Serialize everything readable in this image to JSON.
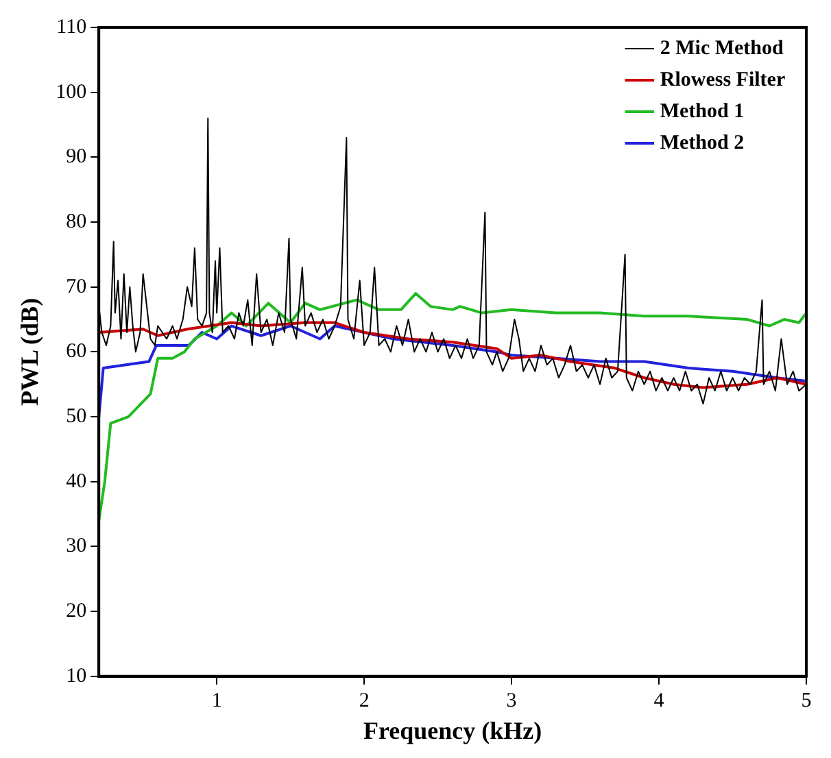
{
  "chart_data": {
    "type": "line",
    "xlabel": "Frequency (kHz)",
    "ylabel": "PWL (dB)",
    "xlim": [
      0.2,
      5
    ],
    "xticks": [
      1,
      2,
      3,
      4,
      5
    ],
    "ylim": [
      10,
      110
    ],
    "yticks": [
      10,
      20,
      30,
      40,
      50,
      60,
      70,
      80,
      90,
      100,
      110
    ],
    "legend": "top right",
    "grid": false,
    "marker": "none",
    "line_style": "solid",
    "series": [
      {
        "name": "2 Mic Method",
        "color": "#000000",
        "x": [
          0.2,
          0.22,
          0.25,
          0.28,
          0.3,
          0.31,
          0.33,
          0.35,
          0.37,
          0.39,
          0.41,
          0.43,
          0.45,
          0.48,
          0.5,
          0.52,
          0.55,
          0.58,
          0.6,
          0.63,
          0.66,
          0.7,
          0.73,
          0.77,
          0.8,
          0.83,
          0.85,
          0.87,
          0.9,
          0.93,
          0.94,
          0.95,
          0.97,
          0.99,
          1.0,
          1.02,
          1.04,
          1.08,
          1.12,
          1.15,
          1.18,
          1.21,
          1.24,
          1.27,
          1.3,
          1.34,
          1.38,
          1.42,
          1.46,
          1.49,
          1.5,
          1.54,
          1.58,
          1.6,
          1.64,
          1.68,
          1.72,
          1.76,
          1.8,
          1.84,
          1.88,
          1.89,
          1.93,
          1.97,
          2.0,
          2.04,
          2.07,
          2.1,
          2.14,
          2.18,
          2.22,
          2.26,
          2.3,
          2.34,
          2.38,
          2.42,
          2.46,
          2.5,
          2.54,
          2.58,
          2.62,
          2.66,
          2.7,
          2.74,
          2.78,
          2.82,
          2.83,
          2.87,
          2.9,
          2.94,
          2.98,
          3.02,
          3.05,
          3.08,
          3.12,
          3.16,
          3.2,
          3.24,
          3.28,
          3.32,
          3.36,
          3.4,
          3.44,
          3.48,
          3.52,
          3.56,
          3.6,
          3.64,
          3.68,
          3.72,
          3.77,
          3.78,
          3.82,
          3.86,
          3.9,
          3.94,
          3.98,
          4.02,
          4.06,
          4.1,
          4.14,
          4.18,
          4.22,
          4.26,
          4.3,
          4.34,
          4.38,
          4.42,
          4.46,
          4.5,
          4.54,
          4.58,
          4.62,
          4.66,
          4.7,
          4.71,
          4.75,
          4.79,
          4.83,
          4.87,
          4.91,
          4.95,
          5.0
        ],
        "values": [
          67,
          63,
          61,
          64,
          77,
          66,
          71,
          62,
          72,
          63,
          70,
          64,
          60,
          63,
          72,
          68,
          62,
          61,
          64,
          63,
          62,
          64,
          62,
          65,
          70,
          67,
          76,
          65,
          64,
          66,
          96,
          66,
          63,
          74,
          66,
          76,
          63,
          64,
          62,
          66,
          64,
          68,
          61,
          72,
          63,
          65,
          61,
          66,
          63,
          77.5,
          65,
          62,
          73,
          64,
          66,
          63,
          65,
          62,
          64,
          67,
          93,
          65,
          62,
          71,
          61,
          63,
          73,
          61,
          62,
          60,
          64,
          61,
          65,
          60,
          62,
          60,
          63,
          60,
          62,
          59,
          61,
          59,
          62,
          59,
          61,
          81.5,
          60,
          58,
          60,
          57,
          59,
          65,
          62,
          57,
          59,
          57,
          61,
          58,
          59,
          56,
          58,
          61,
          57,
          58,
          56,
          58,
          55,
          59,
          56,
          57,
          75,
          56,
          54,
          57,
          55,
          57,
          54,
          56,
          54,
          56,
          54,
          57,
          54,
          55,
          52,
          56,
          54,
          57,
          54,
          56,
          54,
          56,
          55,
          57,
          68,
          55,
          57,
          54,
          62,
          55,
          57,
          54,
          55
        ]
      },
      {
        "name": "Rlowess Filter",
        "color": "#cc0000",
        "x": [
          0.2,
          0.5,
          0.6,
          0.8,
          1.1,
          1.3,
          1.6,
          1.8,
          2.0,
          2.3,
          2.6,
          2.9,
          3.0,
          3.2,
          3.4,
          3.7,
          3.9,
          4.1,
          4.3,
          4.6,
          4.8,
          5.0
        ],
        "values": [
          63,
          63.5,
          62.5,
          63.5,
          64.5,
          64,
          64.5,
          64.5,
          63,
          62,
          61.5,
          60.5,
          59,
          59.5,
          58.5,
          57.5,
          56,
          55,
          54.5,
          55,
          56,
          55
        ]
      },
      {
        "name": "Method 1",
        "color": "#22bb22",
        "x": [
          0.2,
          0.24,
          0.28,
          0.4,
          0.55,
          0.6,
          0.7,
          0.78,
          0.85,
          1.0,
          1.1,
          1.2,
          1.35,
          1.5,
          1.6,
          1.7,
          1.95,
          2.1,
          2.25,
          2.35,
          2.45,
          2.6,
          2.65,
          2.8,
          3.0,
          3.3,
          3.6,
          3.9,
          4.2,
          4.6,
          4.75,
          4.85,
          4.95,
          5.0
        ],
        "values": [
          34,
          40,
          49,
          50,
          53.5,
          59,
          59,
          60,
          62,
          64,
          66,
          64,
          67.5,
          64.5,
          67.5,
          66.5,
          68,
          66.5,
          66.5,
          69,
          67,
          66.5,
          67,
          66,
          66.5,
          66,
          66,
          65.5,
          65.5,
          65,
          64,
          65,
          64.5,
          66
        ]
      },
      {
        "name": "Method 2",
        "color": "#2222dd",
        "x": [
          0.2,
          0.23,
          0.54,
          0.59,
          0.81,
          0.9,
          1.0,
          1.1,
          1.3,
          1.5,
          1.7,
          1.8,
          2.0,
          2.2,
          2.6,
          2.9,
          3.0,
          3.3,
          3.6,
          3.9,
          4.2,
          4.5,
          4.8,
          5.0
        ],
        "values": [
          50,
          57.5,
          58.5,
          61,
          61,
          63,
          62,
          64,
          62.5,
          64,
          62,
          64,
          63,
          62,
          61,
          60,
          59.5,
          59,
          58.5,
          58.5,
          57.5,
          57,
          56,
          55.5
        ]
      }
    ]
  }
}
